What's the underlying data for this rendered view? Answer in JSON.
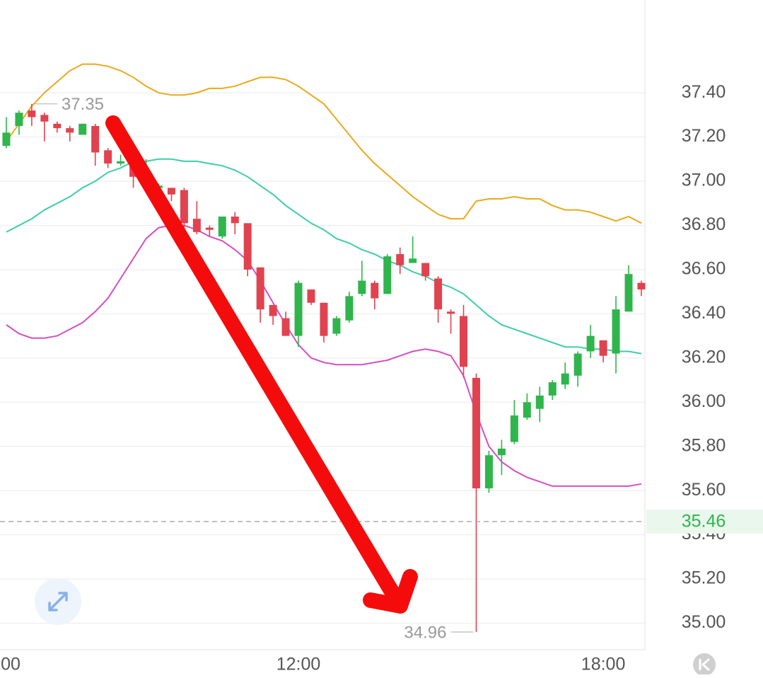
{
  "chart_data": {
    "type": "candlestick",
    "categories": [
      "00",
      null,
      null,
      null,
      null,
      null,
      null,
      null,
      null,
      null,
      null,
      null,
      null,
      null,
      null,
      null,
      null,
      null,
      null,
      null,
      null,
      null,
      null,
      null,
      "12:00",
      null,
      null,
      null,
      null,
      null,
      null,
      null,
      null,
      null,
      null,
      null,
      null,
      null,
      null,
      null,
      null,
      null,
      null,
      null,
      null,
      null,
      null,
      null,
      "18:00",
      null,
      null,
      null
    ],
    "open": [
      null,
      37.16,
      37.25,
      37.32,
      37.3,
      37.26,
      37.24,
      37.21,
      37.25,
      37.14,
      37.08,
      37.07,
      36.99,
      36.97,
      36.97,
      36.96,
      36.83,
      36.79,
      36.75,
      36.84,
      36.81,
      36.61,
      36.44,
      36.38,
      36.3,
      36.51,
      36.45,
      36.31,
      36.37,
      36.49,
      36.54,
      36.49,
      36.67,
      36.63,
      36.63,
      36.56,
      36.41,
      36.39,
      36.11,
      35.61,
      35.76,
      35.82,
      35.93,
      35.97,
      36.03,
      36.08,
      36.12,
      36.23,
      36.28,
      36.22,
      36.41,
      36.54
    ],
    "high": [
      null,
      37.29,
      37.32,
      37.35,
      37.31,
      37.27,
      37.25,
      37.26,
      37.26,
      37.15,
      37.12,
      37.1,
      37.1,
      36.99,
      36.97,
      36.97,
      36.91,
      36.8,
      36.84,
      36.86,
      36.81,
      36.61,
      36.44,
      36.41,
      36.55,
      36.51,
      36.45,
      36.39,
      36.5,
      36.64,
      36.55,
      36.67,
      36.7,
      36.75,
      36.63,
      36.57,
      36.42,
      36.44,
      36.13,
      35.78,
      35.83,
      36.01,
      36.04,
      36.07,
      36.1,
      36.18,
      36.23,
      36.35,
      36.28,
      36.48,
      36.62,
      36.55
    ],
    "low": [
      null,
      37.15,
      37.21,
      37.25,
      37.18,
      37.22,
      37.18,
      37.21,
      37.07,
      37.06,
      37.07,
      36.97,
      36.97,
      36.96,
      36.91,
      36.76,
      36.76,
      36.75,
      36.74,
      36.76,
      36.57,
      36.36,
      36.35,
      36.3,
      36.25,
      36.44,
      36.27,
      36.3,
      36.36,
      36.48,
      36.42,
      36.49,
      36.58,
      36.63,
      36.55,
      36.36,
      36.31,
      36.11,
      34.96,
      35.59,
      35.67,
      35.81,
      35.92,
      35.91,
      36.01,
      36.06,
      36.07,
      36.2,
      36.18,
      36.13,
      36.41,
      36.48
    ],
    "close": [
      null,
      37.22,
      37.31,
      37.29,
      37.27,
      37.24,
      37.22,
      37.26,
      37.13,
      37.08,
      37.09,
      37.02,
      37.05,
      36.98,
      36.94,
      36.81,
      36.77,
      36.78,
      36.84,
      36.81,
      36.6,
      36.42,
      36.39,
      36.3,
      36.54,
      36.45,
      36.3,
      36.38,
      36.48,
      36.55,
      36.47,
      36.66,
      36.62,
      36.65,
      36.57,
      36.42,
      36.4,
      36.16,
      35.61,
      35.76,
      35.79,
      35.94,
      36.0,
      36.03,
      36.09,
      36.13,
      36.22,
      36.3,
      36.21,
      36.42,
      36.58,
      36.51
    ],
    "up_color": "#2fb54c",
    "down_color": "#e0434f",
    "bands": [
      {
        "color": "#e9aa1c",
        "values": [
          null,
          37.18,
          37.26,
          37.34,
          37.4,
          37.45,
          37.5,
          37.53,
          37.53,
          37.52,
          37.5,
          37.47,
          37.43,
          37.4,
          37.39,
          37.39,
          37.4,
          37.42,
          37.42,
          37.43,
          37.45,
          37.47,
          37.47,
          37.46,
          37.43,
          37.39,
          37.35,
          37.28,
          37.21,
          37.14,
          37.08,
          37.03,
          36.98,
          36.93,
          36.89,
          36.85,
          36.83,
          36.83,
          36.91,
          36.92,
          36.92,
          36.93,
          36.92,
          36.92,
          36.89,
          36.87,
          36.87,
          36.86,
          36.84,
          36.82,
          36.84,
          36.81
        ]
      },
      {
        "color": "#3ccfa6",
        "values": [
          null,
          36.77,
          36.8,
          36.83,
          36.87,
          36.9,
          36.93,
          36.97,
          37.0,
          37.04,
          37.06,
          37.09,
          37.09,
          37.1,
          37.1,
          37.09,
          37.09,
          37.08,
          37.07,
          37.05,
          37.02,
          36.98,
          36.94,
          36.89,
          36.85,
          36.81,
          36.78,
          36.74,
          36.72,
          36.69,
          36.67,
          36.64,
          36.62,
          36.59,
          36.57,
          36.54,
          36.52,
          36.49,
          36.44,
          36.39,
          36.35,
          36.33,
          36.31,
          36.29,
          36.27,
          36.25,
          36.25,
          36.24,
          36.24,
          36.23,
          36.23,
          36.22
        ]
      },
      {
        "color": "#d64fc3",
        "values": [
          null,
          36.35,
          36.31,
          36.29,
          36.29,
          36.3,
          36.33,
          36.36,
          36.41,
          36.47,
          36.56,
          36.65,
          36.74,
          36.79,
          36.8,
          36.8,
          36.78,
          36.75,
          36.73,
          36.69,
          36.64,
          36.55,
          36.45,
          36.35,
          36.26,
          36.2,
          36.18,
          36.17,
          36.17,
          36.17,
          36.18,
          36.19,
          36.21,
          36.23,
          36.24,
          36.23,
          36.21,
          36.12,
          35.95,
          35.8,
          35.73,
          35.69,
          35.66,
          35.64,
          35.62,
          35.62,
          35.62,
          35.62,
          35.62,
          35.62,
          35.62,
          35.63
        ]
      }
    ],
    "ylim": [
      34.88,
      37.82
    ],
    "yticks": [
      {
        "value": 37.4,
        "label": "37.40"
      },
      {
        "value": 37.2,
        "label": "37.20"
      },
      {
        "value": 37.0,
        "label": "37.00"
      },
      {
        "value": 36.8,
        "label": "36.80"
      },
      {
        "value": 36.6,
        "label": "36.60"
      },
      {
        "value": 36.4,
        "label": "36.40"
      },
      {
        "value": 36.2,
        "label": "36.20"
      },
      {
        "value": 36.0,
        "label": "36.00"
      },
      {
        "value": 35.8,
        "label": "35.80"
      },
      {
        "value": 35.6,
        "label": "35.60"
      },
      {
        "value": 35.4,
        "label": "35.40"
      },
      {
        "value": 35.2,
        "label": "35.20"
      },
      {
        "value": 35.0,
        "label": "35.00"
      }
    ],
    "grid": true,
    "current_price": 35.46,
    "current_price_color": "#2fb54c"
  }
}
